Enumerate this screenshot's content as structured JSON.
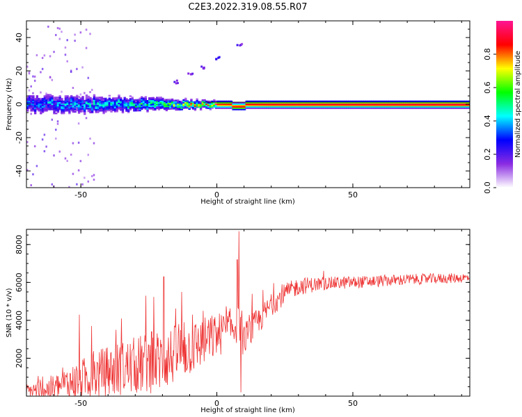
{
  "figure": {
    "title": "C2E3.2022.319.08.55.R07"
  },
  "chart_data": [
    {
      "type": "heatmap",
      "name": "spectrogram",
      "xlabel": "Height of straight line (km)",
      "ylabel": "Frequency (Hz)",
      "xlim": [
        -70,
        93
      ],
      "ylim": [
        -50,
        50
      ],
      "xticks": [
        -50,
        0,
        50
      ],
      "yticks": [
        -40,
        -20,
        0,
        20,
        40
      ],
      "colorbar": {
        "label": "Normalized spectral amplitude",
        "range": [
          0,
          1
        ],
        "ticks": [
          0.0,
          0.2,
          0.4,
          0.6,
          0.8
        ],
        "colormap": [
          "#ffffff",
          "#8a2be2",
          "#0000ff",
          "#00ffff",
          "#00ff00",
          "#ffff00",
          "#ff0000",
          "#ff1493"
        ]
      },
      "carrier_frequency_hz": 0,
      "band_half_width_hz": [
        {
          "x": -70,
          "hz": 6
        },
        {
          "x": -55,
          "hz": 6
        },
        {
          "x": -40,
          "hz": 5
        },
        {
          "x": -25,
          "hz": 4
        },
        {
          "x": -15,
          "hz": 3
        },
        {
          "x": -5,
          "hz": 2
        },
        {
          "x": 0,
          "hz": 2
        },
        {
          "x": 93,
          "hz": 2
        }
      ],
      "carrier_amplitude": [
        {
          "x": -70,
          "a": 0.35
        },
        {
          "x": -50,
          "a": 0.4
        },
        {
          "x": -35,
          "a": 0.45
        },
        {
          "x": -20,
          "a": 0.55
        },
        {
          "x": -10,
          "a": 0.7
        },
        {
          "x": 0,
          "a": 0.85
        },
        {
          "x": 20,
          "a": 0.9
        },
        {
          "x": 93,
          "a": 0.92
        }
      ],
      "harmonic_trace": [
        {
          "x": -15,
          "hz": 14
        },
        {
          "x": -10,
          "hz": 19
        },
        {
          "x": -5,
          "hz": 23
        },
        {
          "x": 0,
          "hz": 28
        },
        {
          "x": 8,
          "hz": 36
        }
      ]
    },
    {
      "type": "line",
      "name": "snr",
      "xlabel": "Height of straight line (km)",
      "ylabel": "SNR (10 * v/v)",
      "xlim": [
        -70,
        93
      ],
      "ylim": [
        0,
        8800
      ],
      "xticks": [
        -50,
        0,
        50
      ],
      "yticks": [
        2000,
        4000,
        6000,
        8000
      ],
      "color": "#ee3333",
      "series": [
        {
          "trend": [
            {
              "x": -70,
              "y": 250
            },
            {
              "x": -60,
              "y": 400
            },
            {
              "x": -50,
              "y": 900
            },
            {
              "x": -40,
              "y": 1300
            },
            {
              "x": -30,
              "y": 1600
            },
            {
              "x": -20,
              "y": 1900
            },
            {
              "x": -10,
              "y": 2500
            },
            {
              "x": 0,
              "y": 3200
            },
            {
              "x": 5,
              "y": 3600
            },
            {
              "x": 8,
              "y": 3800
            },
            {
              "x": 10,
              "y": 3000
            },
            {
              "x": 15,
              "y": 3900
            },
            {
              "x": 20,
              "y": 4800
            },
            {
              "x": 25,
              "y": 5400
            },
            {
              "x": 30,
              "y": 5800
            },
            {
              "x": 40,
              "y": 5950
            },
            {
              "x": 50,
              "y": 6000
            },
            {
              "x": 70,
              "y": 6150
            },
            {
              "x": 93,
              "y": 6250
            }
          ],
          "noise_amplitude": [
            {
              "x": -70,
              "n": 400
            },
            {
              "x": -40,
              "n": 1400
            },
            {
              "x": -20,
              "n": 1700
            },
            {
              "x": 0,
              "n": 1200
            },
            {
              "x": 20,
              "n": 600
            },
            {
              "x": 40,
              "n": 350
            },
            {
              "x": 93,
              "n": 250
            }
          ],
          "spikes": [
            {
              "x": -50.5,
              "y": 4300
            },
            {
              "x": -46,
              "y": 3700
            },
            {
              "x": -37,
              "y": 3500
            },
            {
              "x": -35,
              "y": 4100
            },
            {
              "x": -26,
              "y": 5300
            },
            {
              "x": -24,
              "y": 3400
            },
            {
              "x": -19.5,
              "y": 6300
            },
            {
              "x": -14,
              "y": 3800
            },
            {
              "x": -13,
              "y": 5500
            },
            {
              "x": -12,
              "y": 3900
            },
            {
              "x": -9,
              "y": 4300
            },
            {
              "x": -5,
              "y": 4500
            },
            {
              "x": 7.5,
              "y": 7200
            },
            {
              "x": 8.2,
              "y": 8700
            },
            {
              "x": 8.8,
              "y": 200
            },
            {
              "x": 9.5,
              "y": 2200
            },
            {
              "x": 13,
              "y": 5400
            },
            {
              "x": 17,
              "y": 5600
            },
            {
              "x": 24,
              "y": 5900
            }
          ]
        }
      ]
    }
  ]
}
